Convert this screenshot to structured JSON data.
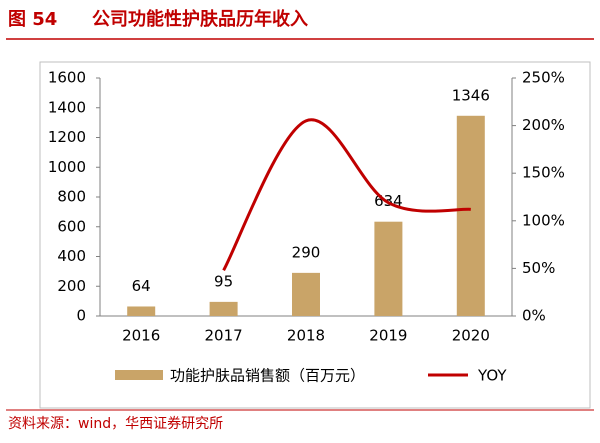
{
  "chart_data": {
    "type": "bar_line",
    "figure_label": "图 54",
    "title": "公司功能性护肤品历年收入",
    "source": "资料来源：wind，华西证券研究所",
    "categories": [
      "2016",
      "2017",
      "2018",
      "2019",
      "2020"
    ],
    "series": [
      {
        "name": "功能护肤品销售额（百万元）",
        "type": "bar",
        "color": "#c9a468",
        "values": [
          64,
          95,
          290,
          634,
          1346
        ]
      },
      {
        "name": "YOY",
        "type": "line",
        "axis": "y2",
        "color": "#c00000",
        "smooth": true,
        "values": [
          null,
          48,
          205,
          119,
          112
        ]
      }
    ],
    "ylim": [
      0,
      1600
    ],
    "yticks": [
      0,
      200,
      400,
      600,
      800,
      1000,
      1200,
      1400,
      1600
    ],
    "y2lim": [
      0,
      250
    ],
    "y2ticks": [
      {
        "value": 0,
        "label": "0%"
      },
      {
        "value": 50,
        "label": "50%"
      },
      {
        "value": 100,
        "label": "100%"
      },
      {
        "value": 150,
        "label": "150%"
      },
      {
        "value": 200,
        "label": "200%"
      },
      {
        "value": 250,
        "label": "250%"
      }
    ],
    "grid": false
  }
}
